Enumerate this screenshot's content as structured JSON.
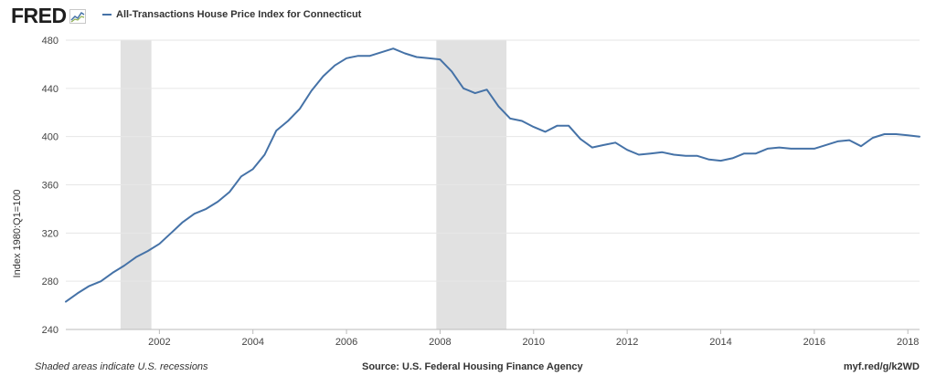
{
  "header": {
    "logo_text": "FRED",
    "legend_label": "All-Transactions House Price Index for Connecticut"
  },
  "footer": {
    "recession_note": "Shaded areas indicate U.S. recessions",
    "source": "Source: U.S. Federal Housing Finance Agency",
    "short_url": "myf.red/g/k2WD"
  },
  "colors": {
    "series_line": "#4572a7",
    "recession_shade": "#e1e1e1",
    "grid": "#e6e6e6"
  },
  "chart_data": {
    "type": "line",
    "title": "",
    "xlabel": "",
    "ylabel": "Index 1980:Q1=100",
    "xlim": [
      2000.0,
      2018.25
    ],
    "ylim": [
      240,
      480
    ],
    "y_ticks": [
      240,
      280,
      320,
      360,
      400,
      440,
      480
    ],
    "x_ticks": [
      2002,
      2004,
      2006,
      2008,
      2010,
      2012,
      2014,
      2016,
      2018
    ],
    "grid": "horizontal",
    "recessions": [
      [
        2001.17,
        2001.83
      ],
      [
        2007.92,
        2009.42
      ]
    ],
    "series": [
      {
        "name": "All-Transactions House Price Index for Connecticut",
        "x": [
          2000.0,
          2000.25,
          2000.5,
          2000.75,
          2001.0,
          2001.25,
          2001.5,
          2001.75,
          2002.0,
          2002.25,
          2002.5,
          2002.75,
          2003.0,
          2003.25,
          2003.5,
          2003.75,
          2004.0,
          2004.25,
          2004.5,
          2004.75,
          2005.0,
          2005.25,
          2005.5,
          2005.75,
          2006.0,
          2006.25,
          2006.5,
          2006.75,
          2007.0,
          2007.25,
          2007.5,
          2007.75,
          2008.0,
          2008.25,
          2008.5,
          2008.75,
          2009.0,
          2009.25,
          2009.5,
          2009.75,
          2010.0,
          2010.25,
          2010.5,
          2010.75,
          2011.0,
          2011.25,
          2011.5,
          2011.75,
          2012.0,
          2012.25,
          2012.5,
          2012.75,
          2013.0,
          2013.25,
          2013.5,
          2013.75,
          2014.0,
          2014.25,
          2014.5,
          2014.75,
          2015.0,
          2015.25,
          2015.5,
          2015.75,
          2016.0,
          2016.25,
          2016.5,
          2016.75,
          2017.0,
          2017.25,
          2017.5,
          2017.75,
          2018.0,
          2018.25
        ],
        "y": [
          263,
          270,
          276,
          280,
          287,
          293,
          300,
          305,
          311,
          320,
          329,
          336,
          340,
          346,
          354,
          367,
          373,
          385,
          405,
          413,
          423,
          438,
          450,
          459,
          465,
          467,
          467,
          470,
          473,
          469,
          466,
          465,
          464,
          454,
          440,
          436,
          439,
          425,
          415,
          413,
          408,
          404,
          409,
          409,
          398,
          391,
          393,
          395,
          389,
          385,
          386,
          387,
          385,
          384,
          384,
          381,
          380,
          382,
          386,
          386,
          390,
          391,
          390,
          390,
          390,
          393,
          396,
          397,
          392,
          399,
          402,
          402,
          401,
          400
        ]
      }
    ]
  }
}
